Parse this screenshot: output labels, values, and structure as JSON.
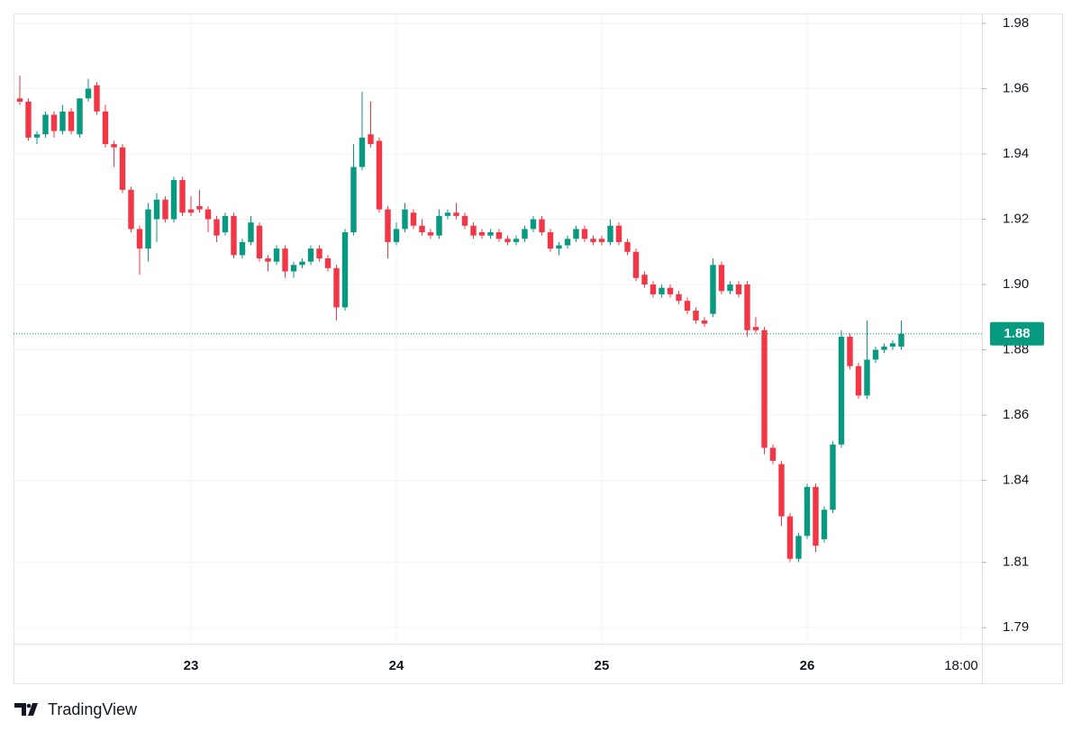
{
  "chart_data": {
    "type": "candlestick",
    "source": "TradingView",
    "up_color": "#089981",
    "down_color": "#f23645",
    "grid": true,
    "categories": [
      null,
      null,
      null,
      null,
      null,
      null,
      null,
      null,
      null,
      null,
      null,
      null,
      null,
      null,
      null,
      null,
      null,
      null,
      null,
      null,
      "23",
      null,
      null,
      null,
      null,
      null,
      null,
      null,
      null,
      null,
      null,
      null,
      null,
      null,
      null,
      null,
      null,
      null,
      null,
      null,
      null,
      null,
      null,
      null,
      "24",
      null,
      null,
      null,
      null,
      null,
      null,
      null,
      null,
      null,
      null,
      null,
      null,
      null,
      null,
      null,
      null,
      null,
      null,
      null,
      null,
      null,
      null,
      null,
      "25",
      null,
      null,
      null,
      null,
      null,
      null,
      null,
      null,
      null,
      null,
      null,
      null,
      null,
      null,
      null,
      null,
      null,
      null,
      null,
      null,
      null,
      null,
      null,
      "26",
      null,
      null,
      null,
      null,
      null,
      null,
      null,
      null,
      null,
      null,
      null,
      null,
      null,
      null,
      null,
      null,
      null,
      "18:00"
    ],
    "open": [
      1.957,
      1.956,
      1.945,
      1.946,
      1.952,
      1.947,
      1.953,
      1.946,
      1.957,
      1.961,
      1.953,
      1.943,
      1.942,
      1.929,
      1.917,
      1.911,
      1.92,
      1.926,
      1.92,
      1.932,
      1.923,
      1.924,
      1.923,
      1.92,
      1.916,
      1.921,
      1.909,
      1.913,
      1.918,
      1.908,
      1.907,
      1.911,
      1.904,
      1.906,
      1.907,
      1.911,
      1.908,
      1.905,
      1.893,
      1.916,
      1.936,
      1.946,
      1.944,
      1.923,
      1.913,
      1.917,
      1.922,
      1.918,
      1.916,
      1.915,
      1.921,
      1.922,
      1.921,
      1.918,
      1.916,
      1.915,
      1.916,
      1.914,
      1.913,
      1.914,
      1.917,
      1.92,
      1.916,
      1.911,
      1.912,
      1.914,
      1.917,
      1.914,
      1.914,
      1.913,
      1.918,
      1.913,
      1.91,
      1.903,
      1.9,
      1.897,
      1.899,
      1.897,
      1.895,
      1.892,
      1.889,
      1.891,
      1.906,
      1.898,
      1.9,
      1.9,
      1.887,
      1.886,
      1.85,
      1.845,
      1.829,
      1.816,
      1.823,
      1.838,
      1.822,
      1.831,
      1.851,
      1.884,
      1.875,
      1.866,
      1.877,
      1.88,
      1.881,
      1.881,
      null,
      null,
      null,
      null,
      null,
      null,
      null
    ],
    "high": [
      1.964,
      1.957,
      1.947,
      1.953,
      1.953,
      1.955,
      1.954,
      1.957,
      1.963,
      1.962,
      1.955,
      1.944,
      1.943,
      1.93,
      1.918,
      1.925,
      1.928,
      1.927,
      1.933,
      1.933,
      1.927,
      1.929,
      1.924,
      1.921,
      1.922,
      1.922,
      1.914,
      1.921,
      1.919,
      1.909,
      1.912,
      1.912,
      1.907,
      1.908,
      1.912,
      1.912,
      1.909,
      1.906,
      1.917,
      1.943,
      1.959,
      1.956,
      1.945,
      1.924,
      1.919,
      1.925,
      1.923,
      1.92,
      1.917,
      1.923,
      1.923,
      1.925,
      1.922,
      1.919,
      1.917,
      1.917,
      1.917,
      1.915,
      1.915,
      1.918,
      1.921,
      1.921,
      1.917,
      1.913,
      1.915,
      1.918,
      1.918,
      1.915,
      1.915,
      1.92,
      1.919,
      1.914,
      1.911,
      1.904,
      1.901,
      1.9,
      1.9,
      1.898,
      1.896,
      1.893,
      1.89,
      1.908,
      1.907,
      1.901,
      1.901,
      1.901,
      1.89,
      1.887,
      1.851,
      1.846,
      1.83,
      1.824,
      1.839,
      1.839,
      1.832,
      1.852,
      1.886,
      1.885,
      1.876,
      1.889,
      1.881,
      1.882,
      1.883,
      1.889,
      null,
      null,
      null,
      null,
      null,
      null,
      null
    ],
    "low": [
      1.955,
      1.944,
      1.943,
      1.945,
      1.945,
      1.946,
      1.946,
      1.945,
      1.956,
      1.952,
      1.942,
      1.936,
      1.928,
      1.916,
      1.903,
      1.907,
      1.913,
      1.919,
      1.919,
      1.921,
      1.921,
      1.922,
      1.916,
      1.913,
      1.915,
      1.908,
      1.908,
      1.912,
      1.907,
      1.904,
      1.906,
      1.902,
      1.902,
      1.905,
      1.906,
      1.907,
      1.904,
      1.889,
      1.892,
      1.915,
      1.935,
      1.942,
      1.922,
      1.908,
      1.912,
      1.916,
      1.917,
      1.915,
      1.914,
      1.914,
      1.92,
      1.92,
      1.917,
      1.914,
      1.914,
      1.914,
      1.913,
      1.912,
      1.912,
      1.913,
      1.916,
      1.915,
      1.91,
      1.909,
      1.911,
      1.913,
      1.913,
      1.912,
      1.912,
      1.912,
      1.912,
      1.909,
      1.901,
      1.899,
      1.896,
      1.896,
      1.896,
      1.894,
      1.891,
      1.888,
      1.887,
      1.89,
      1.897,
      1.897,
      1.896,
      1.884,
      1.885,
      1.848,
      1.845,
      1.826,
      1.815,
      1.815,
      1.822,
      1.818,
      1.821,
      1.83,
      1.85,
      1.874,
      1.865,
      1.865,
      1.876,
      1.879,
      1.88,
      1.88,
      null,
      null,
      null,
      null,
      null,
      null,
      null
    ],
    "close": [
      1.956,
      1.945,
      1.946,
      1.952,
      1.947,
      1.953,
      1.947,
      1.957,
      1.96,
      1.953,
      1.943,
      1.942,
      1.929,
      1.917,
      1.911,
      1.923,
      1.926,
      1.92,
      1.932,
      1.922,
      1.922,
      1.923,
      1.92,
      1.915,
      1.921,
      1.909,
      1.913,
      1.919,
      1.908,
      1.907,
      1.911,
      1.904,
      1.906,
      1.907,
      1.911,
      1.908,
      1.905,
      1.893,
      1.916,
      1.936,
      1.945,
      1.943,
      1.923,
      1.913,
      1.917,
      1.923,
      1.918,
      1.916,
      1.915,
      1.921,
      1.922,
      1.921,
      1.918,
      1.915,
      1.915,
      1.916,
      1.914,
      1.913,
      1.914,
      1.917,
      1.92,
      1.916,
      1.911,
      1.912,
      1.914,
      1.917,
      1.914,
      1.913,
      1.913,
      1.918,
      1.913,
      1.91,
      1.902,
      1.9,
      1.897,
      1.899,
      1.897,
      1.895,
      1.892,
      1.889,
      1.888,
      1.906,
      1.898,
      1.9,
      1.897,
      1.886,
      1.886,
      1.85,
      1.846,
      1.829,
      1.816,
      1.823,
      1.838,
      1.82,
      1.831,
      1.851,
      1.884,
      1.875,
      1.866,
      1.877,
      1.88,
      1.881,
      1.882,
      1.8849,
      null,
      null,
      null,
      null,
      null,
      null,
      null
    ],
    "last_price": {
      "value": 1.8849,
      "label": "1.88"
    },
    "ylim": [
      1.79,
      1.983
    ],
    "yticks": [
      1.98,
      1.96,
      1.94,
      1.92,
      {
        "value": 1.9,
        "label": "1.90"
      },
      1.88,
      1.86,
      1.84,
      {
        "value": 1.8149,
        "label": "1.81"
      },
      {
        "value": 1.7949,
        "label": "1.79"
      }
    ]
  }
}
